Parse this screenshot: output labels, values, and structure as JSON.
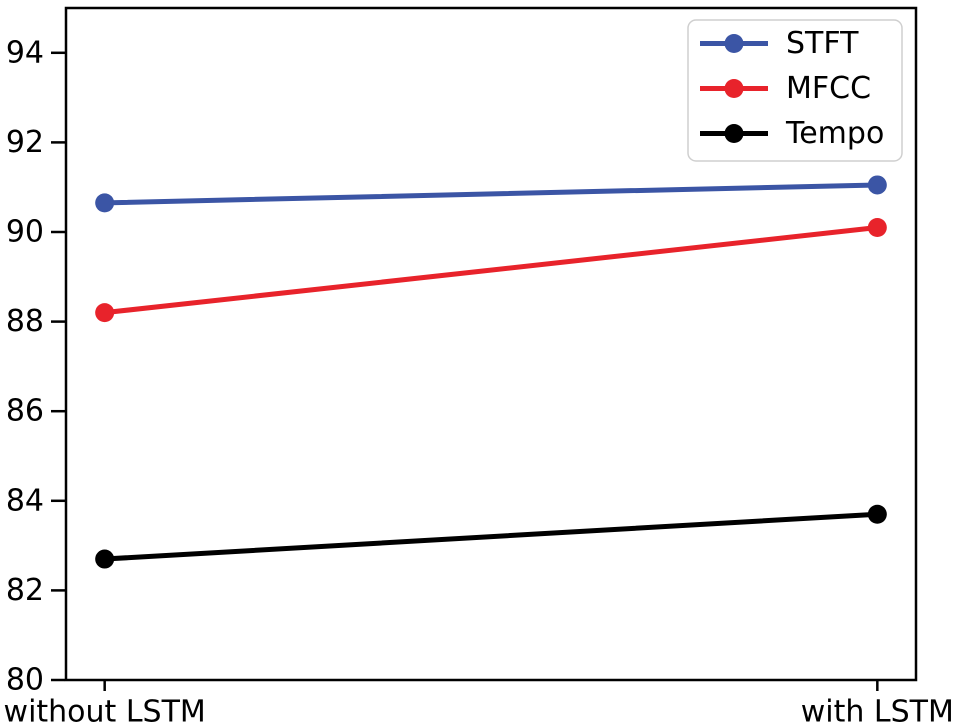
{
  "figure": {
    "background": "#ffffff",
    "axis_color": "#000000"
  },
  "chart_data": {
    "type": "line",
    "title": "",
    "xlabel": "",
    "ylabel": "",
    "categories": [
      "without LSTM",
      "with LSTM"
    ],
    "series": [
      {
        "name": "STFT",
        "color": "#3B55A5",
        "values": [
          90.65,
          91.05
        ]
      },
      {
        "name": "MFCC",
        "color": "#E8232B",
        "values": [
          88.2,
          90.1
        ]
      },
      {
        "name": "Tempo",
        "color": "#000000",
        "values": [
          82.7,
          83.7
        ]
      }
    ],
    "ylim": [
      80,
      95
    ],
    "yticks": [
      80,
      82,
      84,
      86,
      88,
      90,
      92,
      94
    ],
    "grid": false,
    "legend": {
      "position": "upper right",
      "entries": [
        "STFT",
        "MFCC",
        "Tempo"
      ],
      "border_color": "#cfcfcf",
      "background": "#ffffff"
    }
  }
}
